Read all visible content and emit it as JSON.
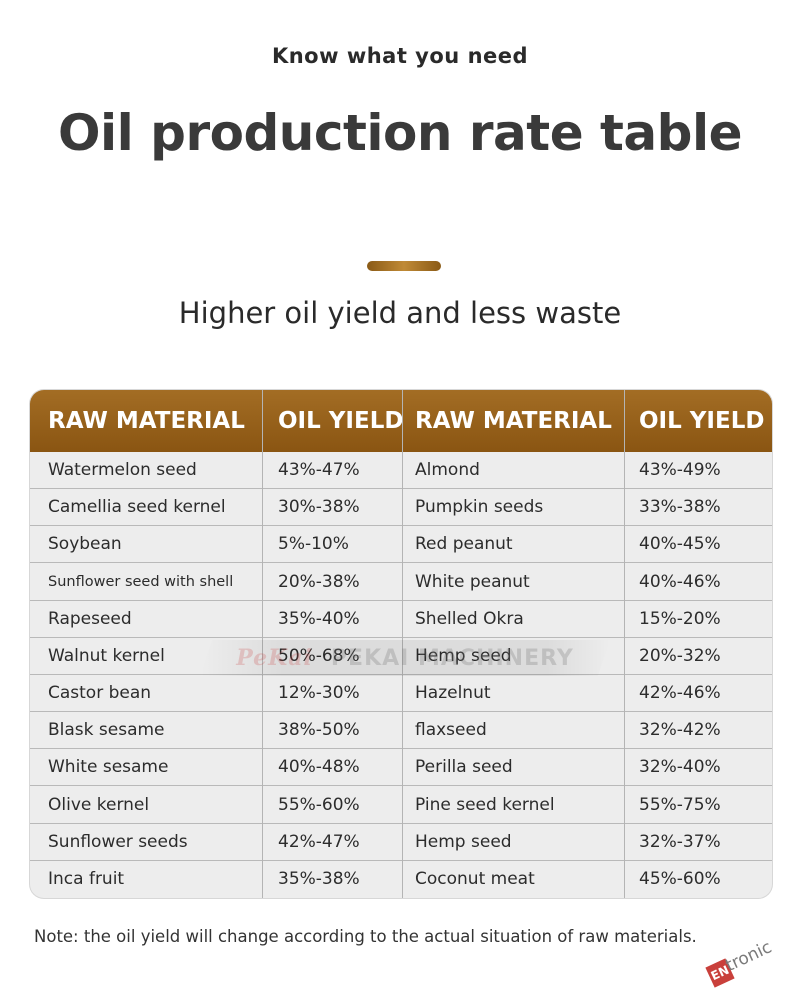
{
  "header": {
    "kicker": "Know what you need",
    "title": "Oil production rate table",
    "subtitle": "Higher oil yield and less waste"
  },
  "table": {
    "columns": [
      "RAW MATERIAL",
      "OIL YIELD",
      "RAW MATERIAL",
      "OIL YIELD"
    ],
    "rows": [
      [
        "Watermelon seed",
        "43%-47%",
        "Almond",
        "43%-49%"
      ],
      [
        "Camellia seed kernel",
        "30%-38%",
        "Pumpkin seeds",
        "33%-38%"
      ],
      [
        "Soybean",
        "5%-10%",
        "Red peanut",
        "40%-45%"
      ],
      [
        "Sunflower seed with shell",
        "20%-38%",
        "White peanut",
        "40%-46%"
      ],
      [
        "Rapeseed",
        "35%-40%",
        "Shelled Okra",
        "15%-20%"
      ],
      [
        "Walnut kernel",
        "50%-68%",
        "Hemp seed",
        "20%-32%"
      ],
      [
        "Castor bean",
        "12%-30%",
        "Hazelnut",
        "42%-46%"
      ],
      [
        "Blask sesame",
        "38%-50%",
        "flaxseed",
        "32%-42%"
      ],
      [
        "White sesame",
        "40%-48%",
        "Perilla seed",
        "32%-40%"
      ],
      [
        "Olive kernel",
        "55%-60%",
        "Pine seed kernel",
        "55%-75%"
      ],
      [
        "Sunflower seeds",
        "42%-47%",
        "Hemp seed",
        "32%-37%"
      ],
      [
        "Inca fruit",
        "35%-38%",
        "Coconut meat",
        "45%-60%"
      ]
    ]
  },
  "watermark": {
    "script": "PeKai",
    "text": "PEKAI MACHINERY"
  },
  "note": "Note: the oil yield will change according to the actual situation of raw materials.",
  "logo": {
    "mark": "EN",
    "word": "tronic"
  },
  "colors": {
    "header_brown": "#8a5512",
    "accent_gold": "#c08a36",
    "row_bg": "#ededed"
  }
}
